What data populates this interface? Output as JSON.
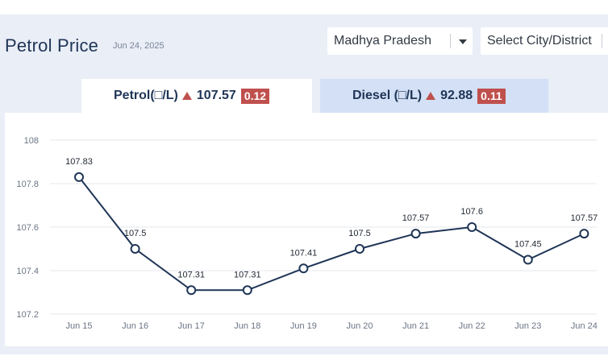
{
  "header": {
    "title": "Petrol Price",
    "date": "Jun 24, 2025"
  },
  "filters": {
    "state": "Madhya Pradesh",
    "city": "Select City/District"
  },
  "tabs": {
    "petrol": {
      "label": "Petrol(□/L)",
      "price": "107.57",
      "change": "0.12"
    },
    "diesel": {
      "label": "Diesel (□/L)",
      "price": "92.88",
      "change": "0.11"
    }
  },
  "colors": {
    "line": "#1f3556",
    "grid": "#e4e7ec",
    "increase": "#c0504d",
    "tab_inactive": "#d3e0f5",
    "panel": "#e9eef7"
  },
  "chart_data": {
    "type": "line",
    "categories": [
      "Jun 15",
      "Jun 16",
      "Jun 17",
      "Jun 18",
      "Jun 19",
      "Jun 20",
      "Jun 21",
      "Jun 22",
      "Jun 23",
      "Jun 24"
    ],
    "values": [
      107.83,
      107.5,
      107.31,
      107.31,
      107.41,
      107.5,
      107.57,
      107.6,
      107.45,
      107.57
    ],
    "labels": [
      "107.83",
      "107.5",
      "107.31",
      "107.31",
      "107.41",
      "107.5",
      "107.57",
      "107.6",
      "107.45",
      "107.57"
    ],
    "y_ticks": [
      "107.2",
      "107.4",
      "107.6",
      "107.8",
      "108"
    ],
    "ylim": [
      107.2,
      108
    ],
    "grid": true
  }
}
